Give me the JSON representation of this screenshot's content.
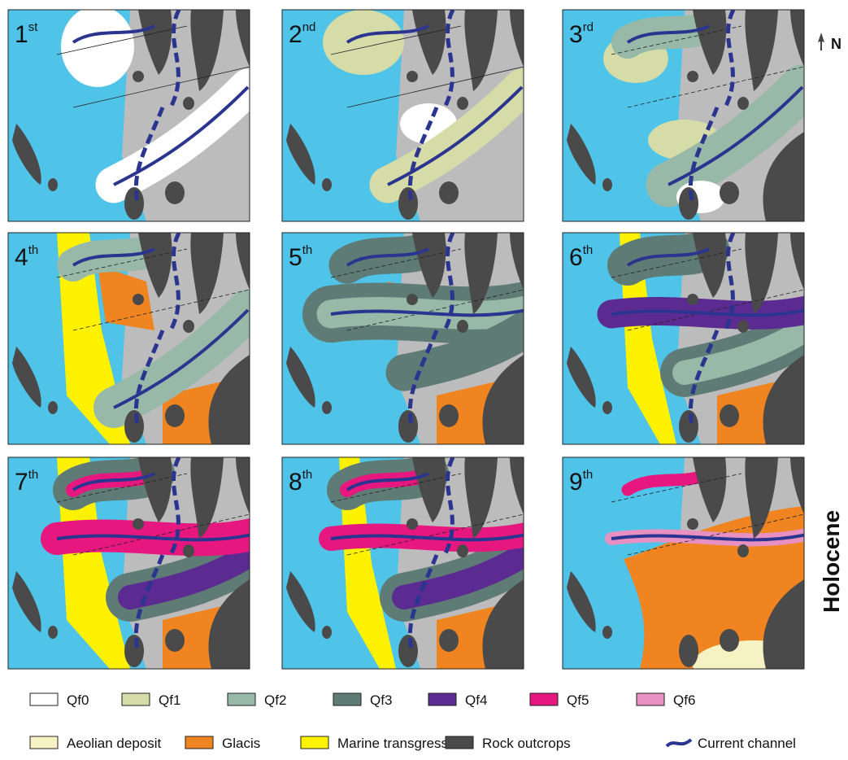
{
  "panels": [
    {
      "number": "1",
      "suffix": "st"
    },
    {
      "number": "2",
      "suffix": "nd"
    },
    {
      "number": "3",
      "suffix": "rd"
    },
    {
      "number": "4",
      "suffix": "th"
    },
    {
      "number": "5",
      "suffix": "th"
    },
    {
      "number": "6",
      "suffix": "th"
    },
    {
      "number": "7",
      "suffix": "th"
    },
    {
      "number": "8",
      "suffix": "th"
    },
    {
      "number": "9",
      "suffix": "th"
    }
  ],
  "north": "N",
  "period": "Holocene",
  "legend": [
    {
      "label": "Qf0",
      "color": "#ffffff"
    },
    {
      "label": "Qf1",
      "color": "#d5dca8"
    },
    {
      "label": "Qf2",
      "color": "#98b8a8"
    },
    {
      "label": "Qf3",
      "color": "#5f7b75"
    },
    {
      "label": "Qf4",
      "color": "#5b2b92"
    },
    {
      "label": "Qf5",
      "color": "#e6177f"
    },
    {
      "label": "Qf6",
      "color": "#e890c2"
    },
    {
      "label": "Aeolian deposit",
      "color": "#f7f2c4"
    },
    {
      "label": "Glacis",
      "color": "#f08420"
    },
    {
      "label": "Marine transgression",
      "color": "#fff200"
    },
    {
      "label": "Rock outcrops",
      "color": "#4a4a4a"
    },
    {
      "label": "Current channel",
      "color": "#2b3590"
    }
  ]
}
